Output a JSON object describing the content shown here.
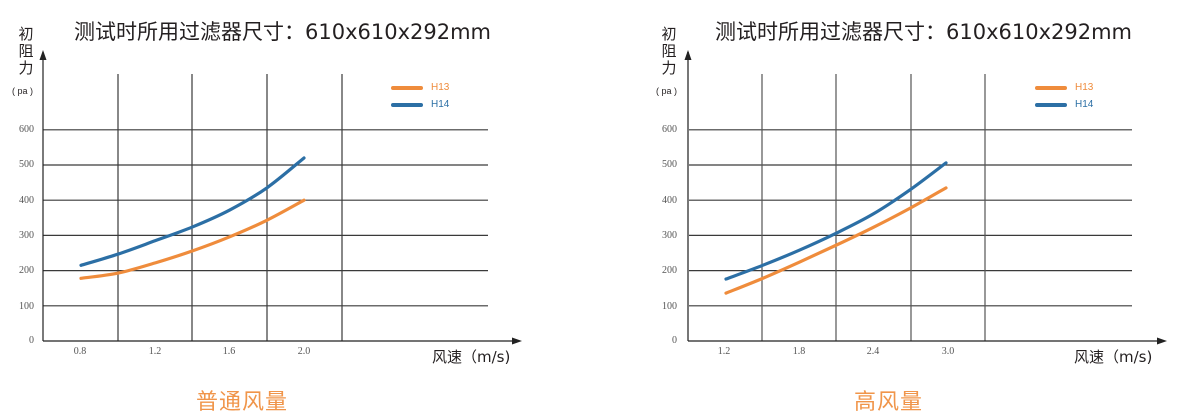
{
  "colors": {
    "h13": "#ef8c3c",
    "h14": "#2c6fa5",
    "grid": "#333333",
    "caption": "#f0954a"
  },
  "chart_data": [
    {
      "type": "line",
      "title": "测试时所用过滤器尺寸：610x610x292mm",
      "caption": "普通风量",
      "xlabel": "风速（m/s)",
      "ylabel": "初阻力",
      "yunit": "( pa )",
      "ylim": [
        0,
        650
      ],
      "yticks": [
        "0",
        "100",
        "200",
        "300",
        "400",
        "500",
        "600"
      ],
      "xticks": [
        "0.8",
        "1.2",
        "1.6",
        "2.0"
      ],
      "grid": true,
      "legend_position": "top-right",
      "x": [
        0.8,
        1.0,
        1.2,
        1.4,
        1.6,
        1.8,
        2.0
      ],
      "series": [
        {
          "name": "H13",
          "values": [
            178,
            193,
            222,
            256,
            296,
            343,
            400
          ]
        },
        {
          "name": "H14",
          "values": [
            215,
            247,
            285,
            324,
            372,
            435,
            520
          ]
        }
      ]
    },
    {
      "type": "line",
      "title": "测试时所用过滤器尺寸：610x610x292mm",
      "caption": "高风量",
      "xlabel": "风速（m/s)",
      "ylabel": "初阻力",
      "yunit": "( pa )",
      "ylim": [
        0,
        650
      ],
      "yticks": [
        "0",
        "100",
        "200",
        "300",
        "400",
        "500",
        "600"
      ],
      "xticks": [
        "1.2",
        "1.8",
        "2.4",
        "3.0"
      ],
      "grid": true,
      "legend_position": "top-right",
      "x": [
        1.2,
        1.5,
        1.8,
        2.1,
        2.4,
        2.7,
        3.0
      ],
      "series": [
        {
          "name": "H13",
          "values": [
            136,
            178,
            224,
            272,
            322,
            376,
            435
          ]
        },
        {
          "name": "H14",
          "values": [
            176,
            215,
            258,
            306,
            360,
            428,
            506
          ]
        }
      ]
    }
  ],
  "panels": [
    {
      "title": "测试时所用过滤器尺寸：610x610x292mm",
      "ylabel_chars": [
        "初",
        "阻",
        "力"
      ],
      "yunit": "( pa )",
      "xlabel": "风速（m/s)",
      "caption": "普通风量",
      "legend": [
        {
          "label": "H13"
        },
        {
          "label": "H14"
        }
      ],
      "yticks": [
        "600",
        "500",
        "400",
        "300",
        "200",
        "100",
        "0"
      ],
      "xticks": [
        "0.8",
        "1.2",
        "1.6",
        "2.0"
      ]
    },
    {
      "title": "测试时所用过滤器尺寸：610x610x292mm",
      "ylabel_chars": [
        "初",
        "阻",
        "力"
      ],
      "yunit": "( pa )",
      "xlabel": "风速（m/s)",
      "caption": "高风量",
      "legend": [
        {
          "label": "H13"
        },
        {
          "label": "H14"
        }
      ],
      "yticks": [
        "600",
        "500",
        "400",
        "300",
        "200",
        "100",
        "0"
      ],
      "xticks": [
        "1.2",
        "1.8",
        "2.4",
        "3.0"
      ]
    }
  ]
}
